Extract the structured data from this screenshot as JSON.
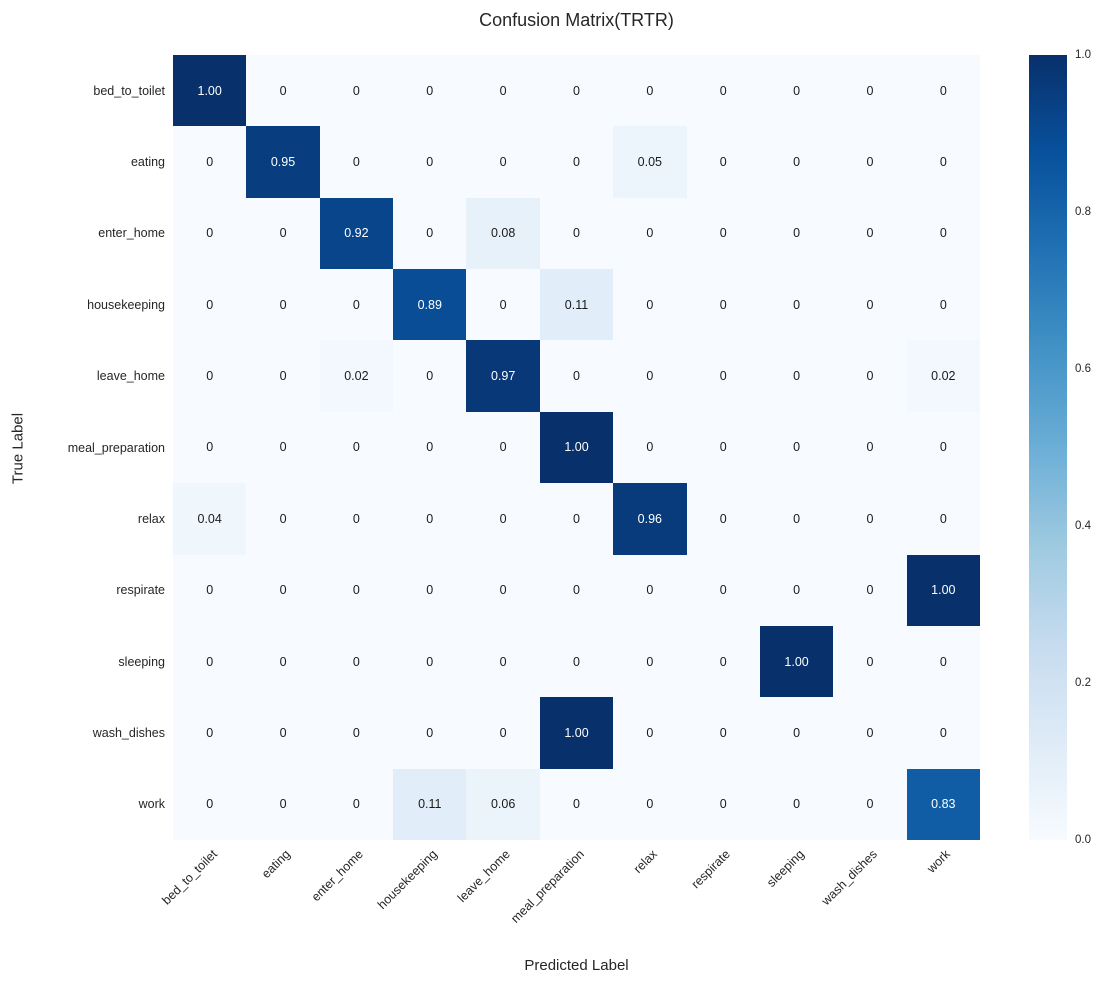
{
  "chart_data": {
    "type": "heatmap",
    "title": "Confusion Matrix(TRTR)",
    "xlabel": "Predicted Label",
    "ylabel": "True Label",
    "x_categories": [
      "bed_to_toilet",
      "eating",
      "enter_home",
      "housekeeping",
      "leave_home",
      "meal_preparation",
      "relax",
      "respirate",
      "sleeping",
      "wash_dishes",
      "work"
    ],
    "y_categories": [
      "bed_to_toilet",
      "eating",
      "enter_home",
      "housekeeping",
      "leave_home",
      "meal_preparation",
      "relax",
      "respirate",
      "sleeping",
      "wash_dishes",
      "work"
    ],
    "matrix": [
      [
        1.0,
        0,
        0,
        0,
        0,
        0,
        0,
        0,
        0,
        0,
        0
      ],
      [
        0,
        0.95,
        0,
        0,
        0,
        0,
        0.05,
        0,
        0,
        0,
        0
      ],
      [
        0,
        0,
        0.92,
        0,
        0.08,
        0,
        0,
        0,
        0,
        0,
        0
      ],
      [
        0,
        0,
        0,
        0.89,
        0,
        0.11,
        0,
        0,
        0,
        0,
        0
      ],
      [
        0,
        0,
        0.02,
        0,
        0.97,
        0,
        0,
        0,
        0,
        0,
        0.02
      ],
      [
        0,
        0,
        0,
        0,
        0,
        1.0,
        0,
        0,
        0,
        0,
        0
      ],
      [
        0.04,
        0,
        0,
        0,
        0,
        0,
        0.96,
        0,
        0,
        0,
        0
      ],
      [
        0,
        0,
        0,
        0,
        0,
        0,
        0,
        0,
        0,
        0,
        1.0
      ],
      [
        0,
        0,
        0,
        0,
        0,
        0,
        0,
        0,
        1.0,
        0,
        0
      ],
      [
        0,
        0,
        0,
        0,
        0,
        1.0,
        0,
        0,
        0,
        0,
        0
      ],
      [
        0,
        0,
        0,
        0.11,
        0.06,
        0,
        0,
        0,
        0,
        0,
        0.83
      ]
    ],
    "cell_text": [
      [
        "1.00",
        "0",
        "0",
        "0",
        "0",
        "0",
        "0",
        "0",
        "0",
        "0",
        "0"
      ],
      [
        "0",
        "0.95",
        "0",
        "0",
        "0",
        "0",
        "0.05",
        "0",
        "0",
        "0",
        "0"
      ],
      [
        "0",
        "0",
        "0.92",
        "0",
        "0.08",
        "0",
        "0",
        "0",
        "0",
        "0",
        "0"
      ],
      [
        "0",
        "0",
        "0",
        "0.89",
        "0",
        "0.11",
        "0",
        "0",
        "0",
        "0",
        "0"
      ],
      [
        "0",
        "0",
        "0.02",
        "0",
        "0.97",
        "0",
        "0",
        "0",
        "0",
        "0",
        "0.02"
      ],
      [
        "0",
        "0",
        "0",
        "0",
        "0",
        "1.00",
        "0",
        "0",
        "0",
        "0",
        "0"
      ],
      [
        "0.04",
        "0",
        "0",
        "0",
        "0",
        "0",
        "0.96",
        "0",
        "0",
        "0",
        "0"
      ],
      [
        "0",
        "0",
        "0",
        "0",
        "0",
        "0",
        "0",
        "0",
        "0",
        "0",
        "1.00"
      ],
      [
        "0",
        "0",
        "0",
        "0",
        "0",
        "0",
        "0",
        "0",
        "1.00",
        "0",
        "0"
      ],
      [
        "0",
        "0",
        "0",
        "0",
        "0",
        "1.00",
        "0",
        "0",
        "0",
        "0",
        "0"
      ],
      [
        "0",
        "0",
        "0",
        "0.11",
        "0.06",
        "0",
        "0",
        "0",
        "0",
        "0",
        "0.83"
      ]
    ],
    "vmin": 0,
    "vmax": 1,
    "colormap": "Blues",
    "colormap_stops": [
      {
        "pos": 0.0,
        "color": "#f7fbff"
      },
      {
        "pos": 0.125,
        "color": "#deebf7"
      },
      {
        "pos": 0.25,
        "color": "#c6dbef"
      },
      {
        "pos": 0.375,
        "color": "#9ecae1"
      },
      {
        "pos": 0.5,
        "color": "#6baed6"
      },
      {
        "pos": 0.625,
        "color": "#4292c6"
      },
      {
        "pos": 0.75,
        "color": "#2171b5"
      },
      {
        "pos": 0.875,
        "color": "#08519c"
      },
      {
        "pos": 1.0,
        "color": "#08306b"
      }
    ],
    "annot_color_light": "#ffffff",
    "annot_color_dark": "#1a1a1a",
    "colorbar_tick_labels": [
      "1.0",
      "0.8",
      "0.6",
      "0.4",
      "0.2",
      "0.0"
    ],
    "colorbar_tick_values": [
      1.0,
      0.8,
      0.6,
      0.4,
      0.2,
      0.0
    ],
    "legend_position": "right-colorbar",
    "grid": false,
    "background_color": "#ffffff"
  }
}
